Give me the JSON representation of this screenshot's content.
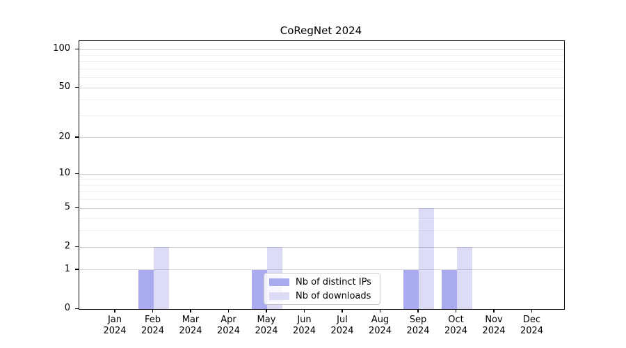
{
  "chart_data": {
    "type": "bar",
    "title": "CoRegNet 2024",
    "categories": [
      "Jan",
      "Feb",
      "Mar",
      "Apr",
      "May",
      "Jun",
      "Jul",
      "Aug",
      "Sep",
      "Oct",
      "Nov",
      "Dec"
    ],
    "category_year": "2024",
    "series": [
      {
        "name": "Nb of distinct IPs",
        "color": "#aaaaee",
        "values": [
          0,
          1,
          0,
          0,
          1,
          0,
          0,
          0,
          1,
          1,
          0,
          0
        ]
      },
      {
        "name": "Nb of downloads",
        "color": "#dcdcf7",
        "values": [
          0,
          2,
          0,
          0,
          2,
          0,
          0,
          0,
          5,
          2,
          0,
          0
        ]
      }
    ],
    "xlabel": "",
    "ylabel": "",
    "y_scale": "log1p",
    "y_major_ticks": [
      0,
      1,
      2,
      5,
      10,
      20,
      50,
      100
    ],
    "y_minor_ticks": [
      3,
      4,
      6,
      7,
      8,
      9,
      30,
      40,
      60,
      70,
      80,
      90
    ],
    "ylim": [
      0,
      116
    ],
    "grid": "on",
    "legend_position": "inside lower-center",
    "colors": {
      "major_grid": "#d4d4d4",
      "minor_grid": "#efefef",
      "axis": "#000000",
      "background": "#ffffff"
    }
  }
}
